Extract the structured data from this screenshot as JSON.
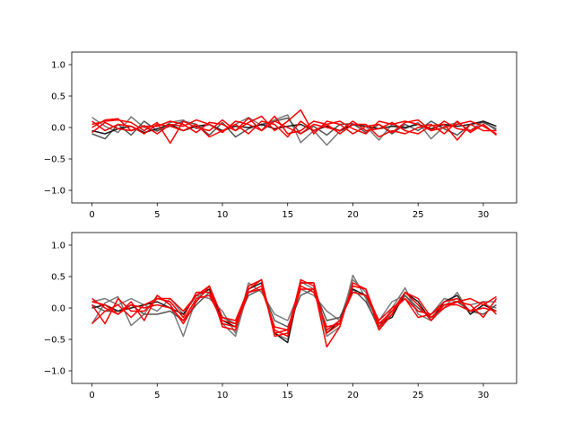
{
  "chart_data": [
    {
      "type": "line",
      "title": "",
      "xlabel": "",
      "ylabel": "",
      "xlim": [
        -1.55,
        32.55
      ],
      "ylim": [
        -1.2,
        1.2
      ],
      "xticks": [
        0,
        5,
        10,
        15,
        20,
        25,
        30
      ],
      "yticks": [
        -1.0,
        -0.5,
        0.0,
        0.5,
        1.0
      ],
      "ytick_labels": [
        "−1.0",
        "−0.5",
        "0.0",
        "0.5",
        "1.0"
      ],
      "grid": false,
      "x": [
        0,
        1,
        2,
        3,
        4,
        5,
        6,
        7,
        8,
        9,
        10,
        11,
        12,
        13,
        14,
        15,
        16,
        17,
        18,
        19,
        20,
        21,
        22,
        23,
        24,
        25,
        26,
        27,
        28,
        29,
        30,
        31
      ],
      "series": [
        {
          "color": "#7a7a7a",
          "values": [
            0.16,
            0.02,
            -0.08,
            0.17,
            0.0,
            -0.06,
            0.08,
            0.12,
            -0.02,
            0.05,
            -0.05,
            0.05,
            0.16,
            0.03,
            0.12,
            0.2,
            -0.24,
            -0.05,
            -0.28,
            -0.06,
            0.04,
            0.02,
            -0.2,
            0.05,
            -0.02,
            0.08,
            -0.18,
            0.02,
            0.08,
            -0.05,
            0.1,
            -0.05
          ]
        },
        {
          "color": "#555555",
          "values": [
            -0.1,
            -0.18,
            0.05,
            -0.12,
            0.1,
            -0.05,
            0.02,
            0.1,
            0.05,
            -0.12,
            0.08,
            -0.15,
            -0.02,
            0.05,
            0.1,
            0.15,
            -0.1,
            0.02,
            -0.12,
            0.05,
            0.06,
            -0.08,
            0.05,
            -0.1,
            0.05,
            -0.05,
            0.1,
            -0.02,
            -0.12,
            0.05,
            0.08,
            -0.02
          ]
        },
        {
          "color": "#1a1a1a",
          "values": [
            -0.05,
            -0.1,
            -0.02,
            0.02,
            -0.08,
            -0.02,
            0.05,
            -0.05,
            0.02,
            0.05,
            -0.05,
            0.02,
            0.0,
            0.05,
            -0.02,
            0.02,
            0.05,
            -0.05,
            0.02,
            -0.05,
            0.05,
            0.02,
            -0.02,
            0.02,
            0.0,
            0.05,
            -0.02,
            0.05,
            0.02,
            0.05,
            0.1,
            0.02
          ]
        },
        {
          "color": "#ff0000",
          "values": [
            0.05,
            0.1,
            0.12,
            0.08,
            -0.05,
            0.08,
            -0.25,
            0.1,
            0.0,
            -0.05,
            0.12,
            -0.05,
            0.08,
            0.18,
            -0.05,
            0.1,
            0.28,
            -0.1,
            0.1,
            0.05,
            -0.1,
            0.02,
            0.05,
            -0.08,
            0.08,
            0.12,
            -0.05,
            0.1,
            -0.02,
            -0.05,
            0.05,
            -0.12
          ]
        },
        {
          "color": "#ff0000",
          "values": [
            0.0,
            0.12,
            0.14,
            -0.05,
            0.03,
            -0.1,
            0.05,
            0.02,
            0.12,
            0.05,
            -0.08,
            0.1,
            0.05,
            -0.05,
            0.1,
            0.0,
            -0.1,
            0.05,
            0.0,
            -0.05,
            0.1,
            -0.05,
            -0.02,
            0.08,
            -0.05,
            -0.1,
            0.03,
            0.05,
            -0.2,
            0.05,
            -0.05,
            -0.05
          ]
        },
        {
          "color": "#ff0000",
          "values": [
            -0.08,
            0.08,
            -0.02,
            -0.05,
            0.02,
            0.02,
            0.1,
            0.05,
            -0.08,
            0.08,
            0.05,
            -0.05,
            0.15,
            -0.05,
            0.18,
            -0.1,
            -0.05,
            0.1,
            0.05,
            0.1,
            -0.02,
            -0.1,
            0.1,
            0.05,
            0.1,
            0.05,
            -0.05,
            0.0,
            0.05,
            0.1,
            0.02,
            -0.1
          ]
        },
        {
          "color": "#ff0000",
          "values": [
            0.1,
            -0.05,
            0.05,
            0.02,
            -0.1,
            0.05,
            0.02,
            -0.05,
            0.05,
            -0.15,
            -0.05,
            0.05,
            -0.1,
            0.1,
            0.05,
            -0.15,
            0.1,
            -0.05,
            0.05,
            -0.1,
            0.05,
            0.05,
            -0.15,
            -0.05,
            -0.1,
            0.0,
            0.05,
            -0.1,
            0.1,
            -0.08,
            0.05,
            -0.12
          ]
        }
      ]
    },
    {
      "type": "line",
      "title": "",
      "xlabel": "",
      "ylabel": "",
      "xlim": [
        -1.55,
        32.55
      ],
      "ylim": [
        -1.2,
        1.2
      ],
      "xticks": [
        0,
        5,
        10,
        15,
        20,
        25,
        30
      ],
      "yticks": [
        -1.0,
        -0.5,
        0.0,
        0.5,
        1.0
      ],
      "ytick_labels": [
        "−1.0",
        "−0.5",
        "0.0",
        "0.5",
        "1.0"
      ],
      "grid": false,
      "x": [
        0,
        1,
        2,
        3,
        4,
        5,
        6,
        7,
        8,
        9,
        10,
        11,
        12,
        13,
        14,
        15,
        16,
        17,
        18,
        19,
        20,
        21,
        22,
        23,
        24,
        25,
        26,
        27,
        28,
        29,
        30,
        31
      ],
      "series": [
        {
          "color": "#7a7a7a",
          "values": [
            -0.25,
            0.08,
            0.18,
            -0.28,
            -0.1,
            0.2,
            0.05,
            -0.45,
            0.15,
            0.3,
            -0.25,
            -0.45,
            0.3,
            0.4,
            -0.4,
            -0.5,
            0.42,
            0.3,
            -0.45,
            -0.3,
            0.52,
            0.15,
            -0.35,
            0.0,
            0.32,
            -0.1,
            -0.2,
            0.0,
            0.25,
            -0.1,
            0.05,
            0.0
          ]
        },
        {
          "color": "#7a7a7a",
          "values": [
            0.1,
            0.15,
            0.05,
            0.15,
            0.05,
            -0.05,
            0.15,
            -0.1,
            0.2,
            0.15,
            -0.05,
            -0.4,
            0.4,
            0.25,
            -0.1,
            -0.2,
            0.3,
            0.2,
            -0.05,
            -0.2,
            0.45,
            0.25,
            -0.2,
            0.1,
            0.2,
            -0.05,
            -0.1,
            0.15,
            0.1,
            0.05,
            0.1,
            0.1
          ]
        },
        {
          "color": "#555555",
          "values": [
            0.05,
            -0.05,
            -0.05,
            0.05,
            -0.1,
            -0.1,
            -0.05,
            -0.2,
            0.05,
            0.25,
            -0.15,
            -0.25,
            0.2,
            0.3,
            -0.2,
            -0.3,
            0.2,
            0.3,
            -0.2,
            -0.15,
            0.3,
            0.1,
            -0.3,
            -0.1,
            0.2,
            0.0,
            -0.15,
            0.05,
            0.1,
            -0.05,
            -0.1,
            0.05
          ]
        },
        {
          "color": "#1a1a1a",
          "values": [
            0.0,
            0.05,
            -0.05,
            0.0,
            0.05,
            0.1,
            0.0,
            -0.1,
            0.2,
            0.3,
            -0.2,
            -0.3,
            0.3,
            0.4,
            -0.4,
            -0.55,
            0.4,
            0.4,
            -0.4,
            -0.2,
            0.3,
            0.2,
            -0.25,
            -0.15,
            0.25,
            0.1,
            -0.2,
            0.1,
            0.2,
            -0.1,
            0.05,
            -0.05
          ]
        },
        {
          "color": "#ff0000",
          "values": [
            0.15,
            0.0,
            -0.1,
            0.1,
            -0.2,
            0.2,
            0.05,
            -0.25,
            0.1,
            0.35,
            -0.3,
            -0.35,
            0.35,
            0.45,
            -0.45,
            -0.4,
            0.45,
            0.35,
            -0.62,
            -0.3,
            0.4,
            0.3,
            -0.35,
            -0.1,
            0.25,
            0.05,
            -0.2,
            0.05,
            0.1,
            0.05,
            -0.15,
            0.15
          ]
        },
        {
          "color": "#ff0000",
          "values": [
            -0.25,
            -0.05,
            0.05,
            -0.15,
            0.05,
            0.15,
            0.1,
            -0.15,
            0.25,
            0.25,
            -0.25,
            -0.3,
            0.25,
            0.35,
            -0.35,
            -0.45,
            0.35,
            0.25,
            -0.3,
            -0.25,
            0.35,
            0.3,
            -0.3,
            -0.05,
            0.15,
            -0.15,
            -0.1,
            0.1,
            0.15,
            -0.05,
            0.0,
            -0.05
          ]
        },
        {
          "color": "#ff0000",
          "values": [
            0.05,
            -0.25,
            0.15,
            -0.05,
            -0.05,
            0.15,
            0.15,
            -0.05,
            0.2,
            0.35,
            -0.15,
            -0.2,
            0.3,
            0.45,
            -0.4,
            -0.35,
            0.4,
            0.4,
            -0.4,
            -0.25,
            0.35,
            0.3,
            -0.25,
            -0.05,
            0.25,
            0.15,
            -0.15,
            0.0,
            0.1,
            0.15,
            0.05,
            0.18
          ]
        },
        {
          "color": "#ff0000",
          "values": [
            0.1,
            0.05,
            -0.1,
            0.05,
            0.0,
            0.05,
            0.0,
            -0.2,
            0.15,
            0.2,
            -0.2,
            -0.25,
            0.25,
            0.3,
            -0.3,
            -0.35,
            0.3,
            0.3,
            -0.35,
            -0.2,
            0.25,
            0.2,
            -0.2,
            0.0,
            0.15,
            -0.05,
            -0.1,
            0.05,
            0.05,
            -0.05,
            0.1,
            -0.1
          ]
        }
      ]
    }
  ]
}
